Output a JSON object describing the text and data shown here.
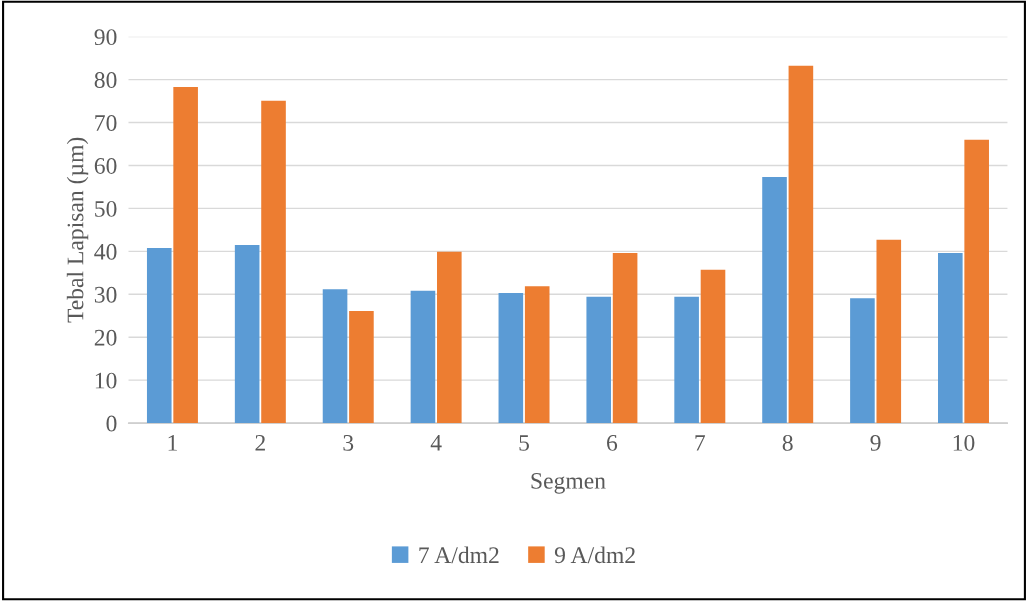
{
  "chart_data": {
    "type": "bar",
    "xlabel": "Segmen",
    "ylabel": "Tebal Lapisan (µm)",
    "categories": [
      "1",
      "2",
      "3",
      "4",
      "5",
      "6",
      "7",
      "8",
      "9",
      "10"
    ],
    "series": [
      {
        "name": "7 A/dm2",
        "color": "#5b9bd5",
        "values": [
          40.8,
          41.5,
          31.2,
          30.8,
          30.3,
          29.4,
          29.4,
          57.3,
          29.1,
          39.6
        ]
      },
      {
        "name": "9 A/dm2",
        "color": "#ed7d31",
        "values": [
          78.3,
          75.1,
          26.1,
          39.9,
          31.9,
          39.6,
          35.7,
          83.2,
          42.7,
          66.0
        ]
      }
    ],
    "ylim": [
      0,
      90
    ],
    "yticks": [
      0,
      10,
      20,
      30,
      40,
      50,
      60,
      70,
      80,
      90
    ],
    "grid": "y",
    "legend": "bottom"
  }
}
